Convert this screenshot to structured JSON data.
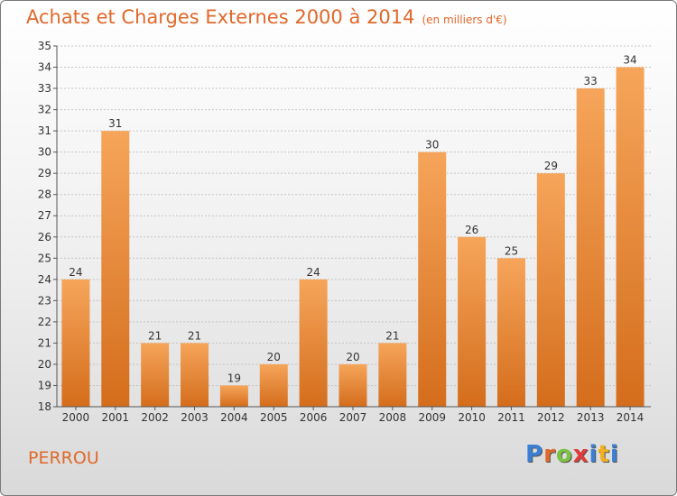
{
  "title": "Achats et Charges Externes 2000 à 2014",
  "unit": "(en milliers d'€)",
  "location": "PERROU",
  "logo": {
    "text": "Proxiti",
    "colors": [
      "#3b7fd4",
      "#e0682a",
      "#7cc242",
      "#e23b3b",
      "#3b7fd4",
      "#f2b01e",
      "#3b7fd4"
    ]
  },
  "colors": {
    "bar_top": "#f6a55a",
    "bar_bottom": "#d46d1c",
    "accent": "#e0682a"
  },
  "chart_data": {
    "type": "bar",
    "categories": [
      "2000",
      "2001",
      "2002",
      "2003",
      "2004",
      "2005",
      "2006",
      "2007",
      "2008",
      "2009",
      "2010",
      "2011",
      "2012",
      "2013",
      "2014"
    ],
    "values": [
      24,
      31,
      21,
      21,
      19,
      20,
      24,
      20,
      21,
      30,
      26,
      25,
      29,
      33,
      34
    ],
    "ylim": [
      18,
      35
    ],
    "yticks": [
      18,
      19,
      20,
      21,
      22,
      23,
      24,
      25,
      26,
      27,
      28,
      29,
      30,
      31,
      32,
      33,
      34,
      35
    ],
    "grid": true
  }
}
